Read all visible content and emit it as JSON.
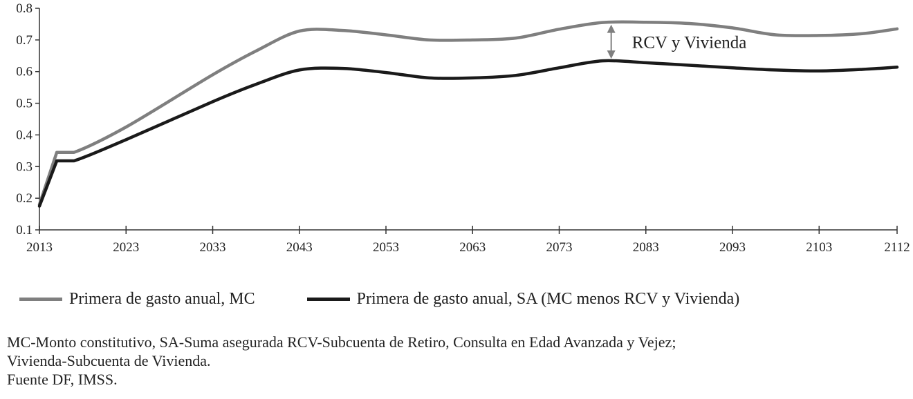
{
  "chart_data": {
    "type": "line",
    "ylim": [
      0.1,
      0.8
    ],
    "xlim": [
      2013,
      2112
    ],
    "y_ticks": [
      "0.1",
      "0.2",
      "0.3",
      "0.4",
      "0.5",
      "0.6",
      "0.7",
      "0.8"
    ],
    "x_ticks": [
      "2013",
      "2023",
      "2033",
      "2043",
      "2053",
      "2063",
      "2073",
      "2083",
      "2093",
      "2103",
      "2112"
    ],
    "grid": false,
    "legend_position": "bottom",
    "series": [
      {
        "name": "Primera de gasto anual, MC",
        "color": "#7f7f7f",
        "points": [
          [
            2013,
            0.18
          ],
          [
            2015,
            0.345
          ],
          [
            2017,
            0.345
          ],
          [
            2023,
            0.425
          ],
          [
            2033,
            0.59
          ],
          [
            2038,
            0.665
          ],
          [
            2043,
            0.728
          ],
          [
            2048,
            0.73
          ],
          [
            2053,
            0.716
          ],
          [
            2058,
            0.7
          ],
          [
            2063,
            0.7
          ],
          [
            2068,
            0.706
          ],
          [
            2073,
            0.734
          ],
          [
            2078,
            0.755
          ],
          [
            2083,
            0.756
          ],
          [
            2088,
            0.752
          ],
          [
            2093,
            0.738
          ],
          [
            2098,
            0.716
          ],
          [
            2103,
            0.714
          ],
          [
            2108,
            0.72
          ],
          [
            2112,
            0.735
          ]
        ]
      },
      {
        "name": "Primera de gasto anual, SA (MC menos RCV y Vivienda)",
        "color": "#1a1a1a",
        "points": [
          [
            2013,
            0.175
          ],
          [
            2015,
            0.318
          ],
          [
            2017,
            0.318
          ],
          [
            2023,
            0.385
          ],
          [
            2033,
            0.505
          ],
          [
            2038,
            0.56
          ],
          [
            2043,
            0.605
          ],
          [
            2048,
            0.61
          ],
          [
            2053,
            0.597
          ],
          [
            2058,
            0.58
          ],
          [
            2063,
            0.58
          ],
          [
            2068,
            0.588
          ],
          [
            2073,
            0.612
          ],
          [
            2078,
            0.634
          ],
          [
            2083,
            0.628
          ],
          [
            2088,
            0.62
          ],
          [
            2093,
            0.612
          ],
          [
            2098,
            0.605
          ],
          [
            2103,
            0.602
          ],
          [
            2108,
            0.607
          ],
          [
            2112,
            0.614
          ]
        ]
      }
    ],
    "annotation": {
      "text": "RCV y Vivienda",
      "x": 2079,
      "y_from": 0.634,
      "y_to": 0.755,
      "arrow_color": "#7f7f7f"
    }
  },
  "notes": [
    "MC-Monto constitutivo, SA-Suma asegurada RCV-Subcuenta de Retiro, Consulta en Edad Avanzada y Vejez;",
    "Vivienda-Subcuenta de Vivienda.",
    "Fuente DF, IMSS."
  ]
}
